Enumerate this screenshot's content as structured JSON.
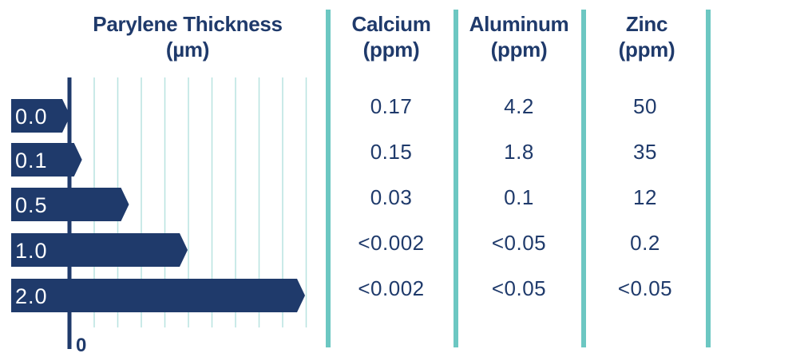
{
  "colors": {
    "navy": "#1f3a6b",
    "teal": "#6cc7c2",
    "gridline": "#b8e3e0",
    "label_text": "#ffffff"
  },
  "chart_data": {
    "type": "bar",
    "orientation": "horizontal",
    "title": "Parylene Thickness",
    "unit_label": "(µm)",
    "categories": [
      "0.0",
      "0.1",
      "0.5",
      "1.0",
      "2.0"
    ],
    "values": [
      0.0,
      0.1,
      0.5,
      1.0,
      2.0
    ],
    "axis_origin_label": "0",
    "xlim": [
      0,
      2.0
    ],
    "grid": true
  },
  "table": {
    "columns": [
      {
        "title": "Calcium",
        "unit": "(ppm)",
        "values": [
          "0.17",
          "0.15",
          "0.03",
          "<0.002",
          "<0.002"
        ]
      },
      {
        "title": "Aluminum",
        "unit": "(ppm)",
        "values": [
          "4.2",
          "1.8",
          "0.1",
          "<0.05",
          "<0.05"
        ]
      },
      {
        "title": "Zinc",
        "unit": "(ppm)",
        "values": [
          "50",
          "35",
          "12",
          "0.2",
          "<0.05"
        ]
      }
    ]
  }
}
